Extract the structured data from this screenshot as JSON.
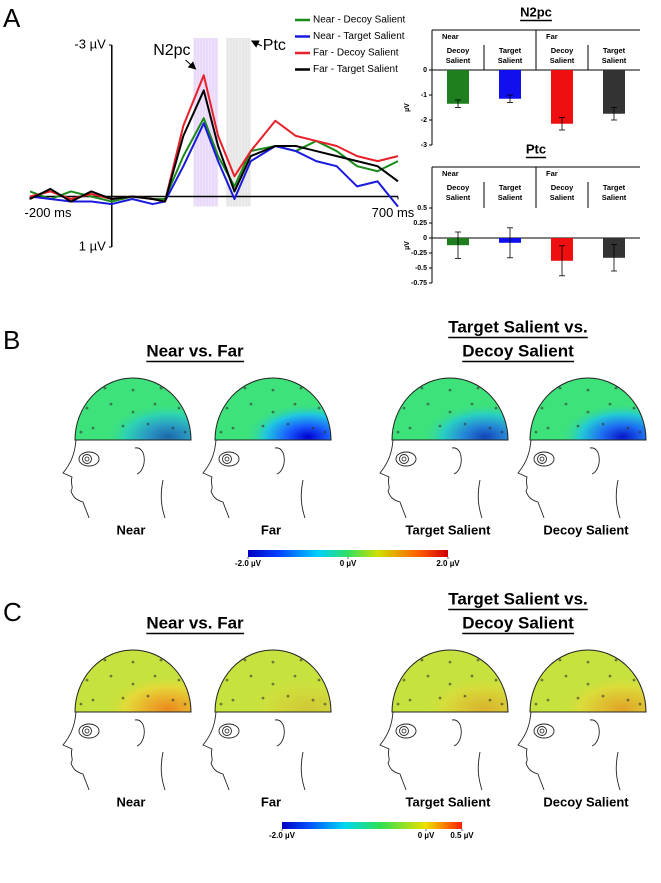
{
  "panel_labels": [
    "A",
    "B",
    "C"
  ],
  "chart_data": [
    {
      "type": "line",
      "xlim": [
        -200,
        700
      ],
      "ylim": [
        1,
        -3
      ],
      "xticks": [
        {
          "value": -200,
          "label": "-200 ms"
        },
        {
          "value": 700,
          "label": "700 ms"
        }
      ],
      "yticks": [
        {
          "value": -3,
          "label": "-3 µV"
        },
        {
          "value": 1,
          "label": "1 µV"
        }
      ],
      "windows": [
        {
          "label": "N2pc",
          "range": [
            200,
            260
          ]
        },
        {
          "label": "Ptc",
          "range": [
            280,
            340
          ]
        }
      ],
      "x": [
        -200,
        -150,
        -100,
        -50,
        0,
        50,
        100,
        130,
        175,
        225,
        260,
        300,
        340,
        400,
        450,
        500,
        550,
        600,
        650,
        700
      ],
      "series": [
        {
          "name": "Near - Decoy Salient",
          "color": "#1a8a1a",
          "values": [
            -0.1,
            0.05,
            -0.1,
            0,
            0.1,
            0,
            0.05,
            0.05,
            -0.8,
            -1.55,
            -0.8,
            -0.2,
            -0.9,
            -1.0,
            -0.9,
            -1.1,
            -0.9,
            -0.6,
            -0.5,
            -0.7
          ]
        },
        {
          "name": "Near - Target Salient",
          "color": "#1a1adc",
          "values": [
            0,
            0.05,
            0.1,
            0.1,
            0.15,
            0.05,
            0.15,
            0.1,
            -0.6,
            -1.45,
            -0.7,
            0.05,
            -0.7,
            -1.0,
            -0.9,
            -0.7,
            -0.6,
            -0.2,
            -0.3,
            0.2
          ]
        },
        {
          "name": "Far - Decoy Salient",
          "color": "#e8202a",
          "values": [
            0,
            -0.1,
            0.05,
            -0.05,
            0.05,
            0,
            0.05,
            0.1,
            -1.4,
            -2.4,
            -1.2,
            -0.4,
            -0.9,
            -1.5,
            -1.2,
            -1.1,
            -1.0,
            -0.8,
            -0.7,
            -0.8
          ]
        },
        {
          "name": "Far - Target Salient",
          "color": "#000000",
          "values": [
            0.05,
            -0.15,
            0.1,
            -0.1,
            0.05,
            0,
            0.05,
            0.1,
            -1.2,
            -2.1,
            -1.0,
            -0.1,
            -0.8,
            -1.0,
            -1.0,
            -0.9,
            -0.8,
            -0.7,
            -0.6,
            -0.3
          ]
        }
      ],
      "legend": "upper right"
    },
    {
      "type": "bar",
      "title": "N2pc",
      "y_label": "µV",
      "groups": [
        "Near",
        "Far"
      ],
      "categories": [
        "Decoy Salient",
        "Target Salient",
        "Decoy Salient",
        "Target Salient"
      ],
      "values": [
        -1.35,
        -1.15,
        -2.15,
        -1.75
      ],
      "errors": [
        0.15,
        0.15,
        0.25,
        0.25
      ],
      "colors": [
        "#1f7f1f",
        "#1010ee",
        "#ee1010",
        "#333333"
      ],
      "ylim": [
        -3,
        0
      ],
      "yticks": [
        0,
        -1,
        -2,
        -3
      ]
    },
    {
      "type": "bar",
      "title": "Ptc",
      "y_label": "µV",
      "groups": [
        "Near",
        "Far"
      ],
      "categories": [
        "Decoy Salient",
        "Target Salient",
        "Decoy Salient",
        "Target Salient"
      ],
      "values": [
        -0.12,
        -0.08,
        -0.38,
        -0.33
      ],
      "errors": [
        0.22,
        0.25,
        0.25,
        0.22
      ],
      "colors": [
        "#1f7f1f",
        "#1010ee",
        "#ee1010",
        "#333333"
      ],
      "ylim": [
        -0.75,
        0.5
      ],
      "yticks": [
        0.5,
        0.25,
        0,
        -0.25,
        -0.5,
        -0.75
      ]
    }
  ],
  "topography": [
    {
      "titles": [
        [
          "Near vs. Far"
        ],
        [
          "Target Salient vs.",
          "Decoy Salient"
        ]
      ],
      "maps": [
        "Near",
        "Far",
        "Target Salient",
        "Decoy Salient"
      ],
      "colorbar": {
        "lim": [
          -2,
          2
        ],
        "ticks": [
          {
            "value": -2,
            "label": "-2.0 µV"
          },
          {
            "value": 0,
            "label": "0 µV"
          },
          {
            "value": 2,
            "label": "2.0 µV"
          }
        ]
      }
    },
    {
      "titles": [
        [
          "Near vs. Far"
        ],
        [
          "Target Salient vs.",
          "Decoy Salient"
        ]
      ],
      "maps": [
        "Near",
        "Far",
        "Target Salient",
        "Decoy Salient"
      ],
      "colorbar": {
        "lim": [
          -2,
          0.5
        ],
        "ticks": [
          {
            "value": -2,
            "label": "-2.0 µV"
          },
          {
            "value": 0,
            "label": "0 µV"
          },
          {
            "value": 0.5,
            "label": "0.5 µV"
          }
        ]
      }
    }
  ]
}
